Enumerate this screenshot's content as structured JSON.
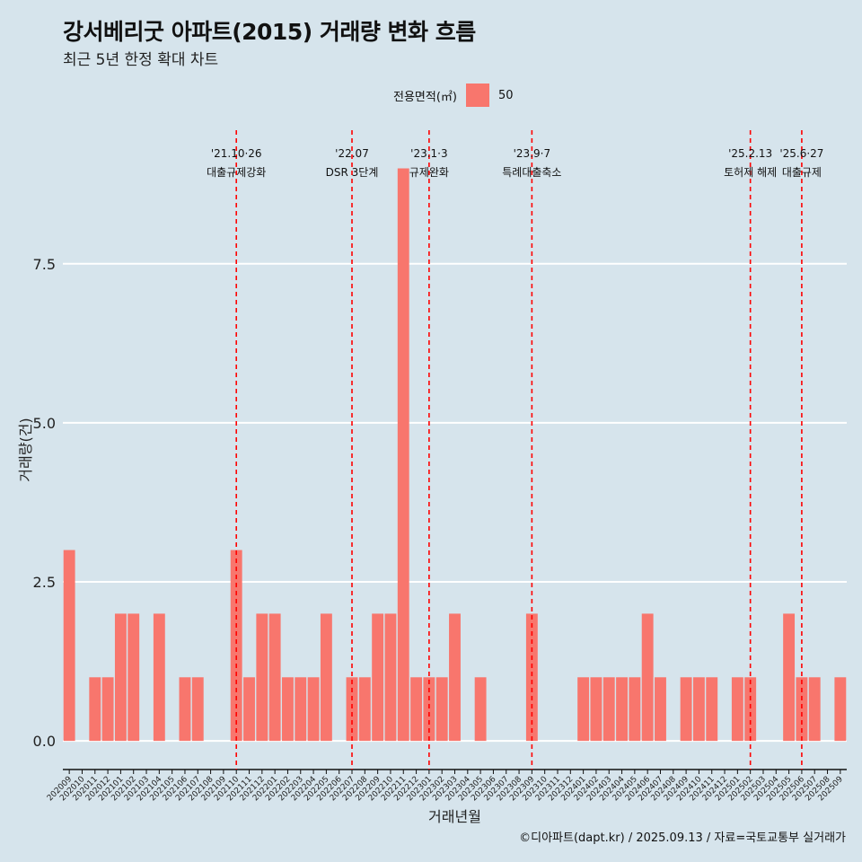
{
  "title": "강서베리굿 아파트(2015) 거래량 변화 흐름",
  "subtitle": "최근 5년 한정 확대 차트",
  "legend": {
    "title": "전용면적(㎡)",
    "item": "50"
  },
  "caption": "©디아파트(dapt.kr) / 2025.09.13 / 자료=국토교통부 실거래가",
  "colors": {
    "bar": "#F8766D",
    "event_line": "#ff0000",
    "background": "#d6e4ec",
    "grid": "#ffffff"
  },
  "chart_data": {
    "type": "bar",
    "xlabel": "거래년월",
    "ylabel": "거래량(건)",
    "ylim": [
      -0.45,
      9.6
    ],
    "yticks": [
      0,
      2.5,
      5,
      7.5
    ],
    "ytick_labels": [
      "0.0",
      "2.5",
      "5.0",
      "7.5"
    ],
    "grid": true,
    "legend_position": "top",
    "categories": [
      "202009",
      "202010",
      "202011",
      "202012",
      "202101",
      "202102",
      "202103",
      "202104",
      "202105",
      "202106",
      "202107",
      "202108",
      "202109",
      "202110",
      "202111",
      "202112",
      "202201",
      "202202",
      "202203",
      "202204",
      "202205",
      "202206",
      "202207",
      "202208",
      "202209",
      "202210",
      "202211",
      "202212",
      "202301",
      "202302",
      "202303",
      "202304",
      "202305",
      "202306",
      "202307",
      "202308",
      "202309",
      "202310",
      "202311",
      "202312",
      "202401",
      "202402",
      "202403",
      "202404",
      "202405",
      "202406",
      "202407",
      "202408",
      "202409",
      "202410",
      "202411",
      "202412",
      "202501",
      "202502",
      "202503",
      "202504",
      "202505",
      "202506",
      "202507",
      "202508",
      "202509"
    ],
    "series": [
      {
        "name": "50",
        "values": [
          3,
          0,
          1,
          1,
          2,
          2,
          0,
          2,
          0,
          1,
          1,
          0,
          0,
          3,
          1,
          2,
          2,
          1,
          1,
          1,
          2,
          0,
          1,
          1,
          2,
          2,
          9,
          1,
          1,
          1,
          2,
          0,
          1,
          0,
          0,
          0,
          2,
          0,
          0,
          0,
          1,
          1,
          1,
          1,
          1,
          2,
          1,
          0,
          1,
          1,
          1,
          0,
          1,
          1,
          0,
          0,
          2,
          1,
          1,
          0,
          1
        ]
      }
    ],
    "events": [
      {
        "x": "202110",
        "date": "'21.10·26",
        "label": "대출규제강화"
      },
      {
        "x": "202207",
        "date": "'22.07",
        "label": "DSR 3단계"
      },
      {
        "x": "202301",
        "date": "'23.1·3",
        "label": "규제완화"
      },
      {
        "x": "202309",
        "date": "'23.9·7",
        "label": "특례대출축소"
      },
      {
        "x": "202502",
        "date": "'25.2.13",
        "label": "토허제 해제"
      },
      {
        "x": "202506",
        "date": "'25.6·27",
        "label": "대출규제"
      }
    ]
  }
}
